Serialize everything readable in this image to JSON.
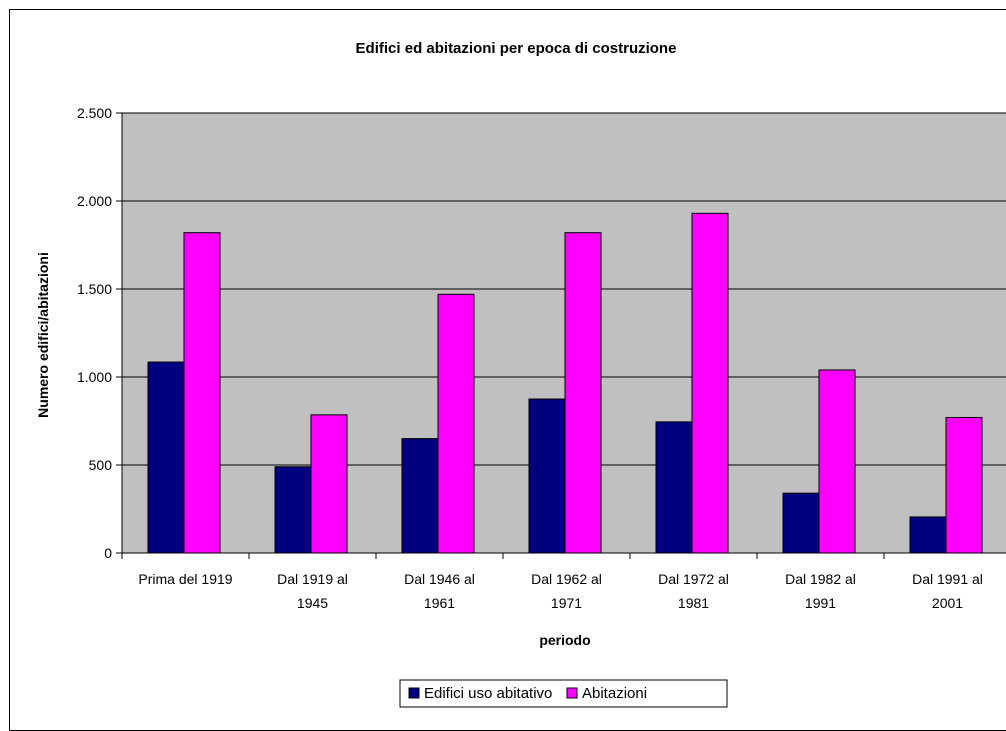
{
  "chart_data": {
    "type": "bar",
    "title": "Edifici ed abitazioni per epoca di costruzione",
    "xlabel": "periodo",
    "ylabel": "Numero edifici/abitazioni",
    "categories": [
      [
        "Prima del 1919"
      ],
      [
        "Dal 1919 al",
        "1945"
      ],
      [
        "Dal 1946 al",
        "1961"
      ],
      [
        "Dal 1962 al",
        "1971"
      ],
      [
        "Dal 1972 al",
        "1981"
      ],
      [
        "Dal 1982 al",
        "1991"
      ],
      [
        "Dal 1991 al",
        "2001"
      ]
    ],
    "series": [
      {
        "name": "Edifici uso abitativo",
        "color": "#000080",
        "values": [
          1085,
          490,
          650,
          875,
          745,
          340,
          205
        ]
      },
      {
        "name": "Abitazioni",
        "color": "#ff00ff",
        "values": [
          1820,
          785,
          1470,
          1820,
          1930,
          1040,
          770
        ]
      }
    ],
    "ylim": [
      0,
      2500
    ],
    "yticks": [
      0,
      500,
      1000,
      1500,
      2000,
      2500
    ],
    "ytick_labels": [
      "0",
      "500",
      "1.000",
      "1.500",
      "2.000",
      "2.500"
    ],
    "plot_background": "#c0c0c0",
    "grid": true,
    "legend_position": "bottom"
  }
}
